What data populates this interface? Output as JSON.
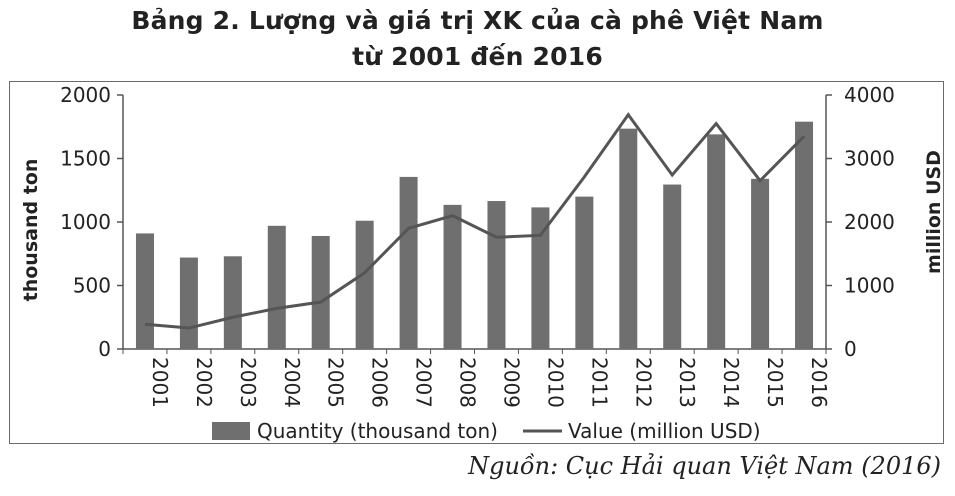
{
  "title_line1": "Bảng 2. Lượng và giá trị XK của cà phê Việt Nam",
  "title_line2": "từ 2001 đến 2016",
  "source": "Nguồn: Cục Hải quan Việt Nam (2016)",
  "chart_data": {
    "type": "bar+line",
    "categories": [
      "2001",
      "2002",
      "2003",
      "2004",
      "2005",
      "2006",
      "2007",
      "2008",
      "2009",
      "2010",
      "2011",
      "2012",
      "2013",
      "2014",
      "2015",
      "2016"
    ],
    "series": [
      {
        "name": "Quantity (thousand ton)",
        "type": "bar",
        "axis": "left",
        "values": [
          910,
          720,
          730,
          970,
          890,
          1010,
          1355,
          1135,
          1165,
          1115,
          1200,
          1735,
          1295,
          1690,
          1340,
          1790
        ]
      },
      {
        "name": "Value (million USD)",
        "type": "line",
        "axis": "right",
        "values": [
          390,
          330,
          500,
          640,
          740,
          1200,
          1900,
          2100,
          1760,
          1790,
          2710,
          3690,
          2740,
          3550,
          2650,
          3350
        ]
      }
    ],
    "ylabel_left": "thousand ton",
    "ylabel_right": "million USD",
    "ylim_left": [
      0,
      2000
    ],
    "ylim_right": [
      0,
      4000
    ],
    "yticks_left": [
      "0",
      "500",
      "1000",
      "1500",
      "2000"
    ],
    "yticks_right": [
      "0",
      "1000",
      "2000",
      "3000",
      "4000"
    ],
    "legend_position": "bottom",
    "grid": false,
    "bar_color": "#6f6f6f",
    "line_color": "#555555"
  }
}
